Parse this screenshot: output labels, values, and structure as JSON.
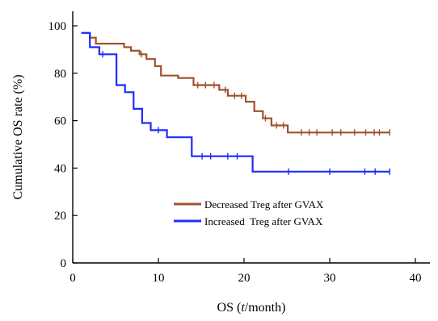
{
  "chart_data": {
    "type": "line",
    "subtype": "kaplan-meier step plot with censor marks",
    "xlabel_prefix": "OS (",
    "xlabel_var": "t",
    "xlabel_suffix": "/month)",
    "ylabel": "Cumulative OS rate (%)",
    "xlim": [
      0,
      40
    ],
    "ylim": [
      0,
      100
    ],
    "xticks": [
      0,
      10,
      20,
      30,
      40
    ],
    "yticks": [
      0,
      20,
      40,
      60,
      80,
      100
    ],
    "grid": false,
    "legend_position": "lower-center",
    "series": [
      {
        "name": "Decreased Treg after GVAX",
        "color": "#a0522d",
        "steps": [
          [
            1,
            97
          ],
          [
            2,
            95
          ],
          [
            2.7,
            92.5
          ],
          [
            6,
            91
          ],
          [
            6.8,
            89.5
          ],
          [
            7.8,
            88
          ],
          [
            8.6,
            86
          ],
          [
            9.6,
            83
          ],
          [
            10.3,
            79
          ],
          [
            12.3,
            78
          ],
          [
            14.1,
            75
          ],
          [
            17.1,
            73
          ],
          [
            18.1,
            70.5
          ],
          [
            20.2,
            68
          ],
          [
            21.2,
            64
          ],
          [
            22.2,
            61
          ],
          [
            23.2,
            58
          ],
          [
            25.1,
            55
          ],
          [
            37,
            55
          ]
        ],
        "censored": [
          [
            8,
            88
          ],
          [
            14.6,
            75
          ],
          [
            15.5,
            75
          ],
          [
            16.5,
            75
          ],
          [
            17.8,
            73
          ],
          [
            18.9,
            70.5
          ],
          [
            19.7,
            70.5
          ],
          [
            22.5,
            61
          ],
          [
            23.8,
            58
          ],
          [
            24.6,
            58
          ],
          [
            26.7,
            55
          ],
          [
            27.6,
            55
          ],
          [
            28.5,
            55
          ],
          [
            30.3,
            55
          ],
          [
            31.3,
            55
          ],
          [
            32.9,
            55
          ],
          [
            34.2,
            55
          ],
          [
            35.2,
            55
          ],
          [
            35.8,
            55
          ],
          [
            37,
            55
          ]
        ]
      },
      {
        "name": "Increased  Treg after GVAX",
        "color": "#1f2bff",
        "steps": [
          [
            1,
            97
          ],
          [
            2,
            91
          ],
          [
            3.1,
            88
          ],
          [
            5.1,
            75
          ],
          [
            6.1,
            72
          ],
          [
            7.1,
            65
          ],
          [
            8.1,
            59
          ],
          [
            9.1,
            56
          ],
          [
            11,
            53
          ],
          [
            13.9,
            45
          ],
          [
            21,
            38.5
          ],
          [
            37,
            38.5
          ]
        ],
        "censored": [
          [
            3.5,
            88
          ],
          [
            10,
            56
          ],
          [
            15.1,
            45
          ],
          [
            16.1,
            45
          ],
          [
            18.1,
            45
          ],
          [
            19.2,
            45
          ],
          [
            25.2,
            38.5
          ],
          [
            30,
            38.5
          ],
          [
            34.1,
            38.5
          ],
          [
            35.3,
            38.5
          ],
          [
            37,
            38.5
          ]
        ]
      }
    ]
  }
}
